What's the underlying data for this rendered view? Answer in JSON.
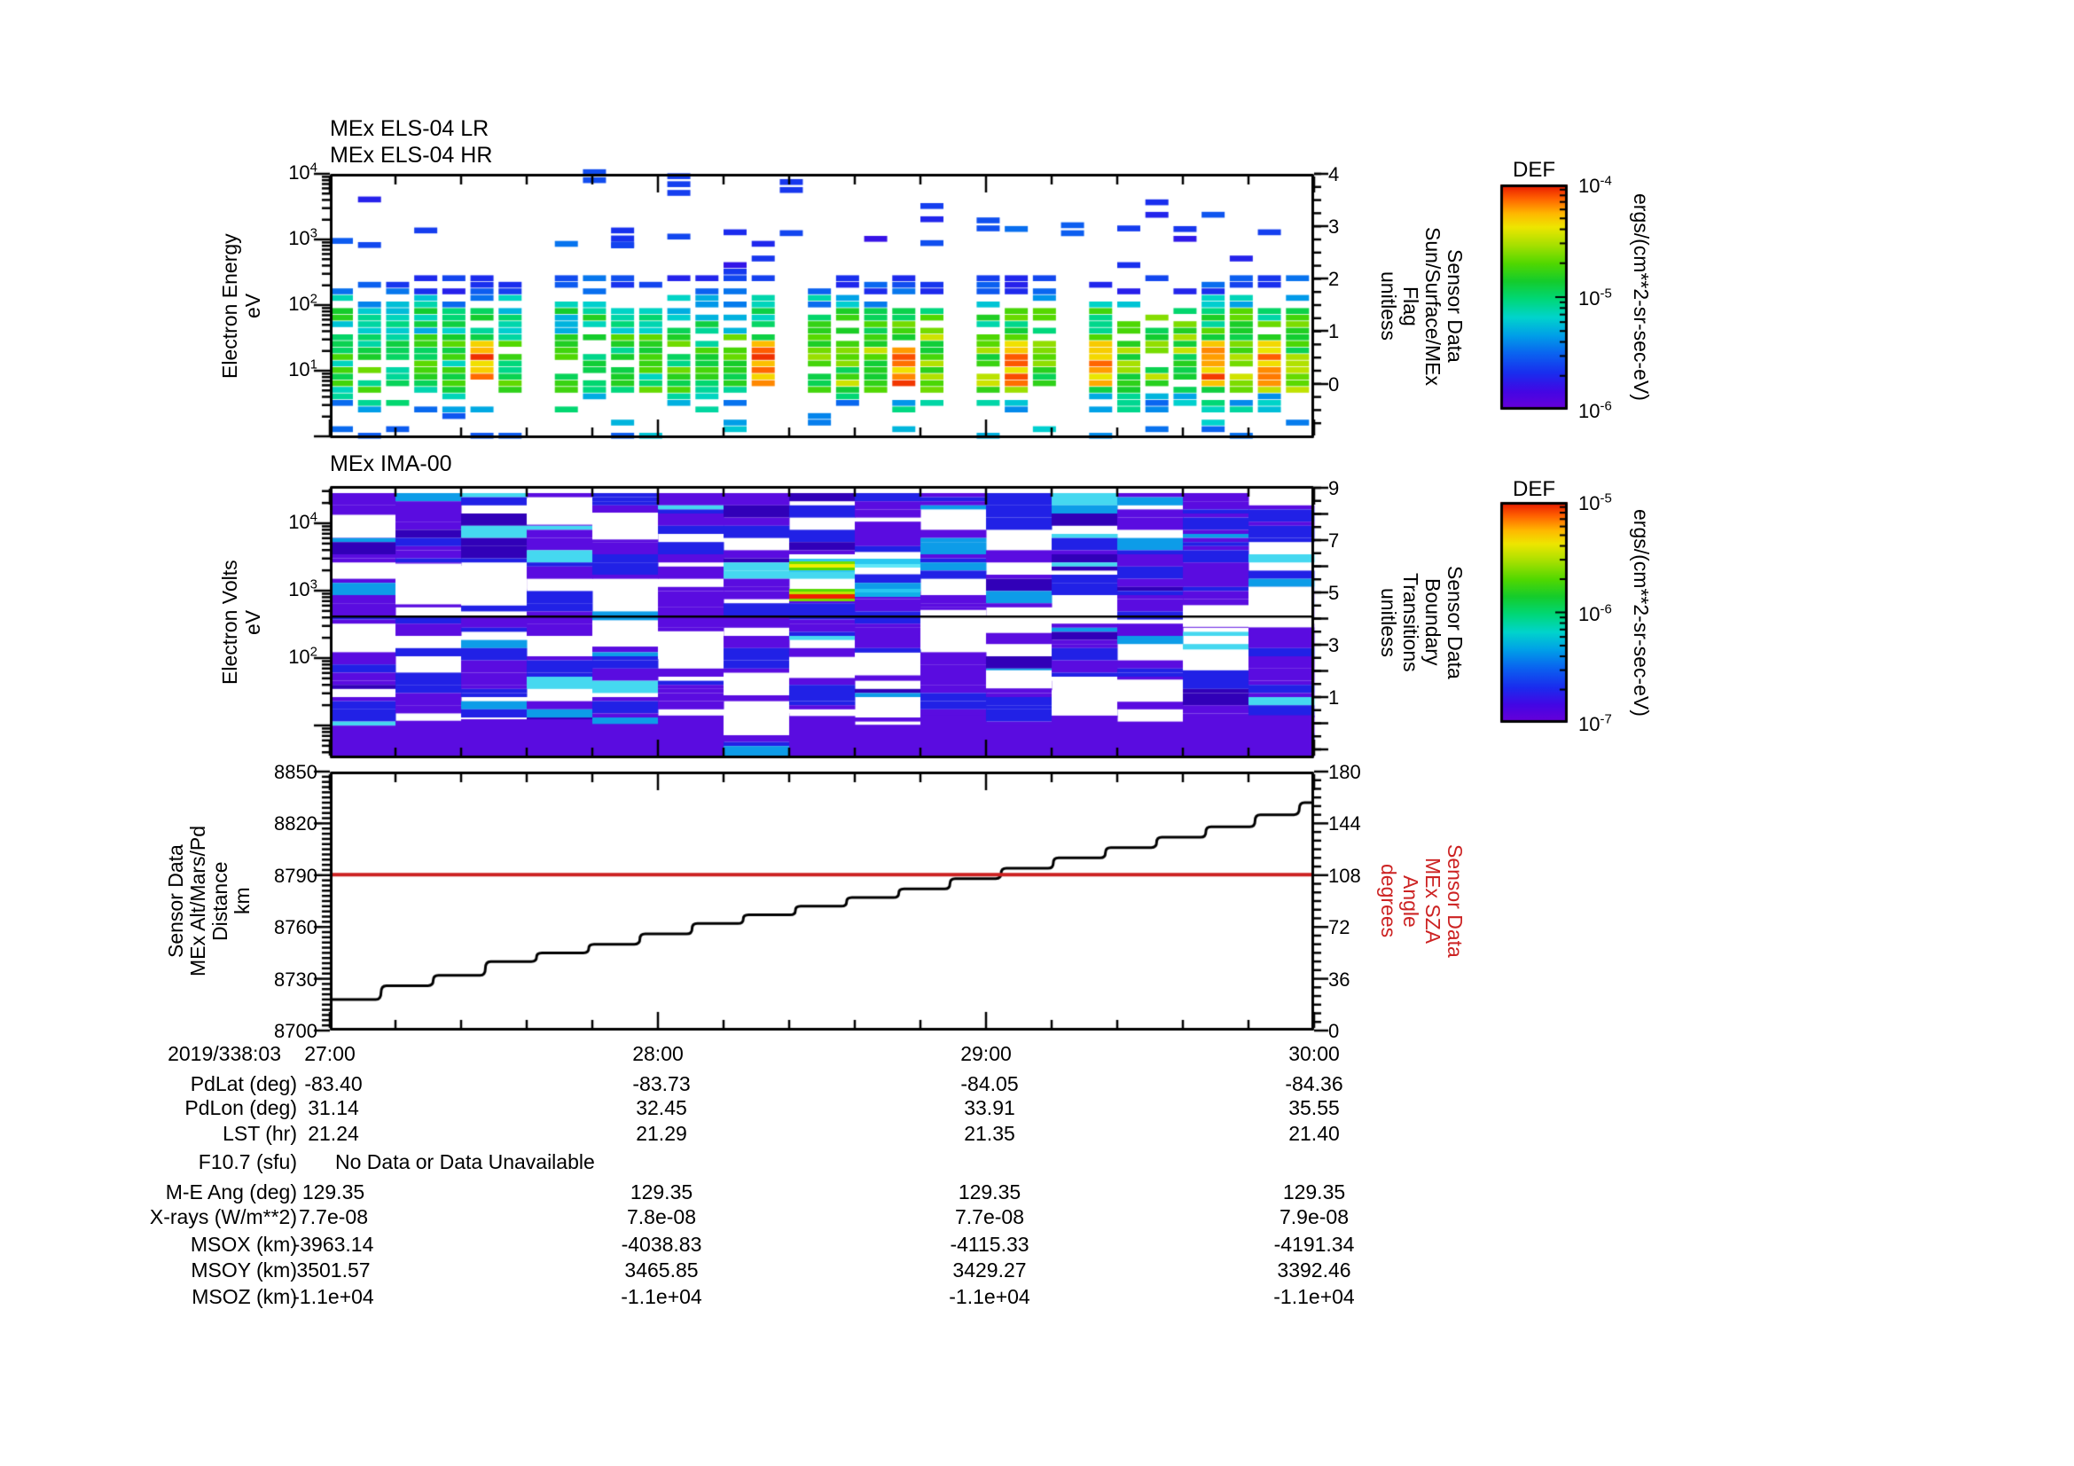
{
  "panels": {
    "els": {
      "title_lines": [
        "MEx ELS-04 LR",
        "MEx ELS-04 HR"
      ],
      "ylabel_lines": [
        "Electron Energy",
        "eV"
      ],
      "ytick_exponents": [
        4,
        3,
        2,
        1
      ],
      "right": {
        "label_lines": [
          "Sensor Data",
          "Sun/Surface/MEx",
          "Flag",
          "unitless"
        ],
        "ticks": [
          "4",
          "3",
          "2",
          "1",
          "0"
        ]
      }
    },
    "ima": {
      "title_lines": [
        "MEx IMA-00"
      ],
      "ylabel_lines": [
        "Electron Volts",
        "eV"
      ],
      "ytick_exponents": [
        4,
        3,
        2
      ],
      "right": {
        "label_lines": [
          "Sensor Data",
          "Boundary",
          "Transitions",
          "unitless"
        ],
        "ticks": [
          "9",
          "7",
          "5",
          "3",
          "1"
        ]
      }
    },
    "alt": {
      "ylabel_lines": [
        "Sensor Data",
        "MEx Alt/Mars/Pd",
        "Distance",
        "km"
      ],
      "yticks": [
        "8850",
        "8820",
        "8790",
        "8760",
        "8730",
        "8700"
      ],
      "right": {
        "label_lines": [
          "Sensor Data",
          "MEx SZA",
          "Angle",
          "degrees"
        ],
        "ticks": [
          "180",
          "144",
          "108",
          "72",
          "36",
          "0"
        ],
        "color": "#cc2222"
      }
    }
  },
  "colorbars": [
    {
      "title": "DEF",
      "tick_exponents": [
        -4,
        -5,
        -6
      ],
      "unit": "ergs/(cm**2-sr-sec-eV)"
    },
    {
      "title": "DEF",
      "tick_exponents": [
        -5,
        -6,
        -7
      ],
      "unit": "ergs/(cm**2-sr-sec-eV)"
    }
  ],
  "xaxis": {
    "date_label": "2019/338:03",
    "hour_labels": [
      "27:00",
      "28:00",
      "29:00",
      "30:00"
    ]
  },
  "table": {
    "rows": [
      {
        "label": "PdLat (deg)",
        "values": [
          "-83.40",
          "-83.73",
          "-84.05",
          "-84.36"
        ]
      },
      {
        "label": "PdLon (deg)",
        "values": [
          "31.14",
          "32.45",
          "33.91",
          "35.55"
        ]
      },
      {
        "label": "LST (hr)",
        "values": [
          "21.24",
          "21.29",
          "21.35",
          "21.40"
        ]
      },
      {
        "label": "F10.7 (sfu)",
        "values": [],
        "message": "No Data or Data Unavailable"
      },
      {
        "label": "M-E Ang (deg)",
        "values": [
          "129.35",
          "129.35",
          "129.35",
          "129.35"
        ]
      },
      {
        "label": "X-rays (W/m**2)",
        "values": [
          "7.7e-08",
          "7.8e-08",
          "7.7e-08",
          "7.9e-08"
        ]
      },
      {
        "label": "MSOX (km)",
        "values": [
          "-3963.14",
          "-4038.83",
          "-4115.33",
          "-4191.34"
        ]
      },
      {
        "label": "MSOY (km)",
        "values": [
          "3501.57",
          "3465.85",
          "3429.27",
          "3392.46"
        ]
      },
      {
        "label": "MSOZ (km)",
        "values": [
          "-1.1e+04",
          "-1.1e+04",
          "-1.1e+04",
          "-1.1e+04"
        ]
      }
    ]
  },
  "chart_data": [
    {
      "type": "heatmap",
      "id": "els_spectrogram",
      "title": "MEx ELS-04 LR / MEx ELS-04 HR",
      "xlabel": "time 2019/338:03 27:00 - 30:00",
      "ylabel": "Electron Energy eV",
      "y_scale": "log",
      "y_range_eV": [
        1,
        10000
      ],
      "value_unit": "ergs/(cm**2-sr-sec-eV)",
      "value_range": [
        1e-06,
        0.0001
      ],
      "right_axis": {
        "label": "Sensor Data Sun/Surface/MEx Flag unitless",
        "tick_range": [
          0,
          4
        ]
      },
      "description": "Sparse blue dashes 150 eV - 10 keV; dense blue-green-yellow bursts below ~100 eV in ~12 min columns; orange-red hot streaks near 8-30 eV, strongest in right half"
    },
    {
      "type": "heatmap",
      "id": "ima_spectrogram",
      "title": "MEx IMA-00",
      "xlabel": "time 2019/338:03 27:00 - 30:00",
      "ylabel": "Electron Volts eV",
      "y_scale": "log",
      "y_range_eV": [
        3.4,
        35000
      ],
      "value_unit": "ergs/(cm**2-sr-sec-eV)",
      "value_range": [
        1e-07,
        1e-05
      ],
      "right_axis": {
        "label": "Sensor Data Boundary Transitions unitless",
        "tick_range": [
          1,
          9
        ]
      },
      "overlay_black_line_eV": 400,
      "hot_feature": {
        "x_bin": 7,
        "bands_eV": [
          1500,
          800
        ],
        "colors": [
          "yellow-green",
          "red"
        ]
      },
      "description": "Dense purple/blue horizontal stripes in 12-min column blocks with white gaps; bright cyan/green/yellow/red bands near 0.8-1.5 keV around 28:30; solid purple blocks at bottom energies"
    },
    {
      "type": "line",
      "id": "altitude_sza",
      "x_range": [
        "27:00",
        "30:00"
      ],
      "left_axis": {
        "label": "Sensor Data MEx Alt/Mars/Pd Distance km",
        "range": [
          8700,
          8850
        ]
      },
      "right_axis": {
        "label": "Sensor Data MEx SZA Angle degrees",
        "range": [
          0,
          180
        ]
      },
      "series": [
        {
          "name": "MEx Alt/Mars/Pd Distance (km)",
          "color": "#000000",
          "style": "staircase",
          "points_frac_km": [
            [
              0.0,
              8718
            ],
            [
              0.052,
              8726
            ],
            [
              0.105,
              8732
            ],
            [
              0.158,
              8740
            ],
            [
              0.21,
              8745
            ],
            [
              0.263,
              8750
            ],
            [
              0.315,
              8756
            ],
            [
              0.368,
              8762
            ],
            [
              0.42,
              8767
            ],
            [
              0.473,
              8772
            ],
            [
              0.525,
              8777
            ],
            [
              0.578,
              8782
            ],
            [
              0.63,
              8788
            ],
            [
              0.682,
              8794
            ],
            [
              0.735,
              8800
            ],
            [
              0.788,
              8806
            ],
            [
              0.84,
              8812
            ],
            [
              0.89,
              8818
            ],
            [
              0.94,
              8825
            ],
            [
              0.985,
              8832
            ]
          ]
        },
        {
          "name": "MEx SZA Angle (degrees)",
          "color": "#cc2222",
          "style": "constant",
          "value_deg": 108.3
        }
      ]
    }
  ],
  "render": {
    "pow_base": "10",
    "accent_red": "#cc2222",
    "colormap_stops": [
      [
        0.0,
        "#6a00d8"
      ],
      [
        0.08,
        "#4406e4"
      ],
      [
        0.16,
        "#1a2cee"
      ],
      [
        0.25,
        "#0a64f0"
      ],
      [
        0.33,
        "#00a0e8"
      ],
      [
        0.41,
        "#00d4cc"
      ],
      [
        0.49,
        "#00d878"
      ],
      [
        0.57,
        "#14cc2c"
      ],
      [
        0.65,
        "#52d800"
      ],
      [
        0.73,
        "#a6e000"
      ],
      [
        0.81,
        "#eee600"
      ],
      [
        0.87,
        "#ffb800"
      ],
      [
        0.94,
        "#ff5e00"
      ],
      [
        1.0,
        "#e61400"
      ]
    ],
    "ima_palette": {
      "purple": "#5a0ce0",
      "blue": "#2121e6",
      "deep": "#3100b8",
      "cyan": "#0d9ce8",
      "bright": "#45d8f0"
    },
    "els_bins": 35,
    "els_gap_bins": [
      7,
      16,
      26
    ],
    "els_hot_bins": [
      5,
      15,
      20,
      24,
      27,
      31,
      33
    ],
    "ima_bins": 15,
    "ima_hot_bin": 7,
    "seed_els": 1338027,
    "seed_ima": 77042
  }
}
